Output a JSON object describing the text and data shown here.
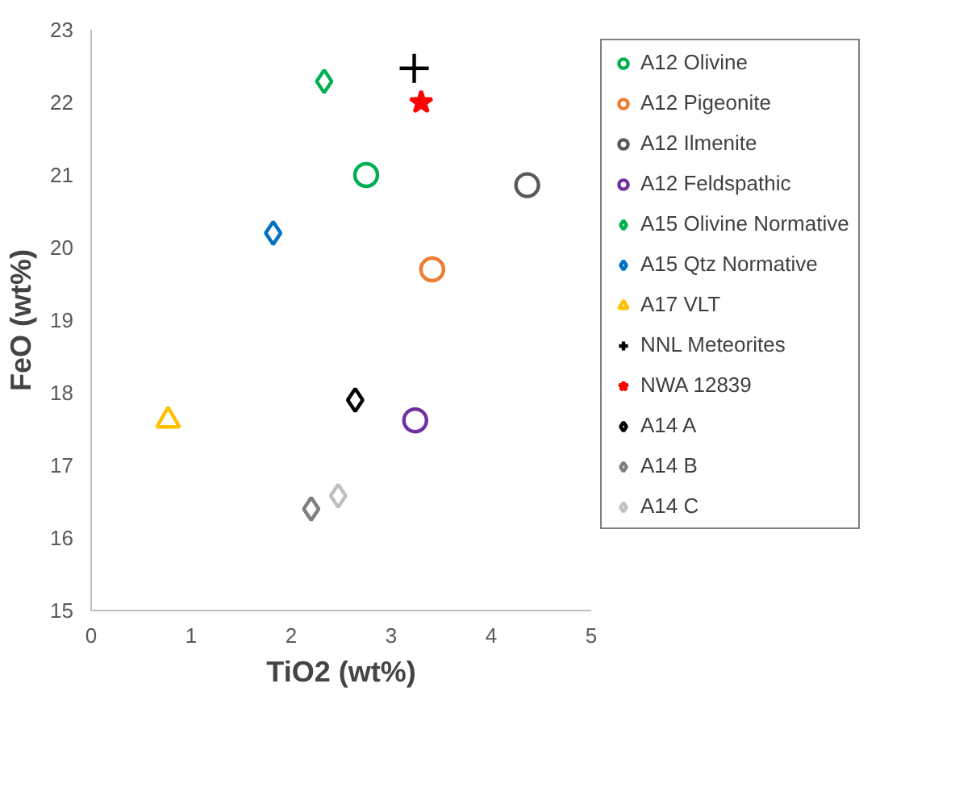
{
  "chart_data": {
    "type": "scatter",
    "xlabel": "TiO2 (wt%)",
    "ylabel": "FeO (wt%)",
    "xlim": [
      0,
      5
    ],
    "ylim": [
      15,
      23
    ],
    "xticks": [
      0,
      1,
      2,
      3,
      4,
      5
    ],
    "yticks": [
      15,
      16,
      17,
      18,
      19,
      20,
      21,
      22,
      23
    ],
    "grid": false,
    "legend": "right",
    "series": [
      {
        "name": "A12 Olivine",
        "color": "#00b050",
        "marker": "circle",
        "x": [
          2.75
        ],
        "values": [
          21.0
        ]
      },
      {
        "name": "A12 Pigeonite",
        "color": "#ed7d31",
        "marker": "circle",
        "x": [
          3.41
        ],
        "values": [
          19.7
        ]
      },
      {
        "name": "A12 Ilmenite",
        "color": "#595959",
        "marker": "circle",
        "x": [
          4.36
        ],
        "values": [
          20.86
        ]
      },
      {
        "name": "A12 Feldspathic",
        "color": "#7030a0",
        "marker": "circle",
        "x": [
          3.24
        ],
        "values": [
          17.62
        ]
      },
      {
        "name": "A15 Olivine Normative",
        "color": "#00b050",
        "marker": "diamond",
        "x": [
          2.33
        ],
        "values": [
          22.29
        ]
      },
      {
        "name": "A15 Qtz Normative",
        "color": "#0070c0",
        "marker": "diamond",
        "x": [
          1.82
        ],
        "values": [
          20.2
        ]
      },
      {
        "name": "A17 VLT",
        "color": "#ffc000",
        "marker": "triangle",
        "x": [
          0.77
        ],
        "values": [
          17.62
        ]
      },
      {
        "name": "NNL Meteorites",
        "color": "#000000",
        "marker": "cross",
        "x": [
          3.23
        ],
        "values": [
          22.47
        ]
      },
      {
        "name": "NWA 12839",
        "color": "#ff0000",
        "marker": "star",
        "x": [
          3.3
        ],
        "values": [
          22.0
        ]
      },
      {
        "name": "A14 A",
        "color": "#000000",
        "marker": "diamond",
        "x": [
          2.64
        ],
        "values": [
          17.9
        ]
      },
      {
        "name": "A14 B",
        "color": "#7f7f7f",
        "marker": "diamond",
        "x": [
          2.2
        ],
        "values": [
          16.4
        ]
      },
      {
        "name": "A14 C",
        "color": "#bfbfbf",
        "marker": "diamond",
        "x": [
          2.47
        ],
        "values": [
          16.58
        ]
      }
    ]
  }
}
